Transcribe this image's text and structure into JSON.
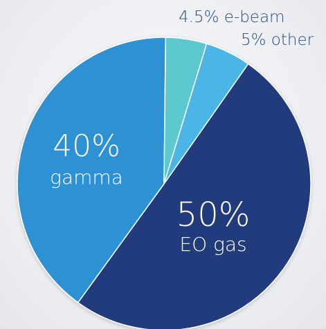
{
  "chart_data": {
    "type": "pie",
    "title": "",
    "slices": [
      {
        "label": "EO gas",
        "value": 50,
        "value_label": "50%",
        "color": "#243b7d"
      },
      {
        "label": "gamma",
        "value": 40,
        "value_label": "40%",
        "color": "#2f91d4"
      },
      {
        "label": "e-beam",
        "value": 4.5,
        "value_label": "4.5%",
        "color": "#5dc8cf"
      },
      {
        "label": "other",
        "value": 5,
        "value_label": "5%",
        "color": "#4bb6e6"
      }
    ],
    "outside_labels": {
      "ebeam": "4.5% e-beam",
      "other": "5% other"
    },
    "label_colors": {
      "inside": "#ffffff",
      "outside": "#2a4d86"
    }
  }
}
